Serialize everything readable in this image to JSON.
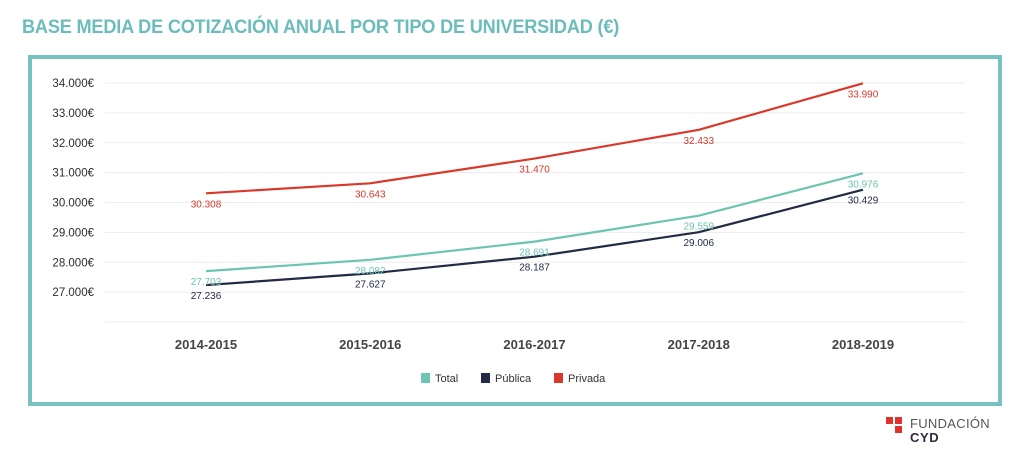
{
  "title": "BASE MEDIA DE COTIZACIÓN ANUAL POR TIPO DE UNIVERSIDAD (€)",
  "logo": {
    "line1": "FUNDACIÓN",
    "line2": "CYD",
    "icon": "fundacion-cyd-logo-squares"
  },
  "chart_data": {
    "type": "line",
    "title": "BASE MEDIA DE COTIZACIÓN ANUAL POR TIPO DE UNIVERSIDAD (€)",
    "xlabel": "",
    "ylabel": "",
    "categories": [
      "2014-2015",
      "2015-2016",
      "2016-2017",
      "2017-2018",
      "2018-2019"
    ],
    "yticks": [
      27000,
      28000,
      29000,
      30000,
      31000,
      32000,
      33000,
      34000
    ],
    "ytick_labels": [
      "27.000€",
      "28.000€",
      "29.000€",
      "30.000€",
      "31.000€",
      "32.000€",
      "33.000€",
      "34.000€"
    ],
    "ylim": [
      26000,
      34000
    ],
    "grid": true,
    "legend_position": "bottom-center",
    "series": [
      {
        "name": "Total",
        "color": "#6cc5b0",
        "values": [
          27703,
          28082,
          28691,
          29559,
          30976
        ],
        "labels": [
          "27.703",
          "28.082",
          "28.691",
          "29.559",
          "30.976"
        ]
      },
      {
        "name": "Pública",
        "color": "#232a45",
        "values": [
          27236,
          27627,
          28187,
          29006,
          30429
        ],
        "labels": [
          "27.236",
          "27.627",
          "28.187",
          "29.006",
          "30.429"
        ]
      },
      {
        "name": "Privada",
        "color": "#d9392b",
        "values": [
          30308,
          30643,
          31470,
          32433,
          33990
        ],
        "labels": [
          "30.308",
          "30.643",
          "31.470",
          "32.433",
          "33.990"
        ]
      }
    ]
  }
}
